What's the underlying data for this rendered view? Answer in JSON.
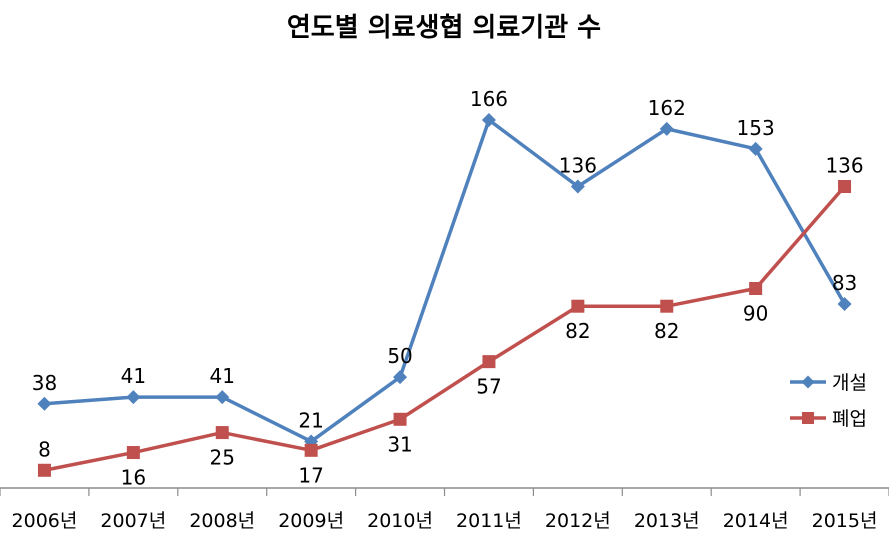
{
  "chart_data": {
    "type": "line",
    "title": "연도별 의료생협 의료기관 수",
    "xlabel": "",
    "ylabel": "",
    "categories": [
      "2006년",
      "2007년",
      "2008년",
      "2009년",
      "2010년",
      "2011년",
      "2012년",
      "2013년",
      "2014년",
      "2015년"
    ],
    "series": [
      {
        "name": "개설",
        "color": "#4f81bd",
        "marker": "diamond",
        "values": [
          38,
          41,
          41,
          21,
          50,
          166,
          136,
          162,
          153,
          83
        ],
        "label_positions": [
          "above",
          "above",
          "above",
          "above",
          "above",
          "above",
          "above",
          "above",
          "above",
          "above"
        ]
      },
      {
        "name": "폐업",
        "color": "#c0504d",
        "marker": "square",
        "values": [
          8,
          16,
          25,
          17,
          31,
          57,
          82,
          82,
          90,
          136
        ],
        "label_positions": [
          "above",
          "below",
          "below",
          "below",
          "below",
          "below",
          "below",
          "below",
          "below",
          "above"
        ]
      }
    ],
    "ylim": [
      0,
      180
    ],
    "grid": false,
    "legend_position": "right"
  }
}
